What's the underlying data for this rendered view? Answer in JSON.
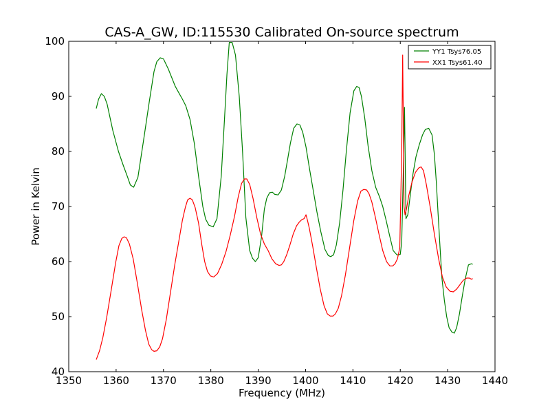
{
  "chart_data": {
    "type": "line",
    "title": "CAS-A_GW, ID:115530 Calibrated On-source spectrum",
    "xlabel": "Frequency (MHz)",
    "ylabel": "Power in Kelvin",
    "xlim": [
      1350,
      1440
    ],
    "ylim": [
      40,
      100
    ],
    "xticks": [
      1350,
      1360,
      1370,
      1380,
      1390,
      1400,
      1410,
      1420,
      1430,
      1440
    ],
    "yticks": [
      40,
      50,
      60,
      70,
      80,
      90,
      100
    ],
    "grid": false,
    "legend_position": "top-right",
    "series": [
      {
        "name": "YY1 Tsys76.05",
        "color": "#008000",
        "x": [
          1355.8,
          1356.3,
          1356.9,
          1357.5,
          1358.1,
          1359.3,
          1360.5,
          1361.5,
          1362.4,
          1363.0,
          1363.7,
          1364.6,
          1365.8,
          1367.0,
          1368.0,
          1368.6,
          1369.3,
          1370.0,
          1371.0,
          1372.5,
          1373.4,
          1374.0,
          1374.7,
          1375.6,
          1376.5,
          1377.4,
          1378.3,
          1378.9,
          1379.6,
          1380.5,
          1381.3,
          1382.2,
          1382.9,
          1383.4,
          1383.9,
          1384.5,
          1385.2,
          1386.0,
          1386.7,
          1387.4,
          1388.2,
          1388.8,
          1389.4,
          1390.0,
          1390.7,
          1391.3,
          1391.8,
          1392.4,
          1393.0,
          1393.5,
          1394.2,
          1394.9,
          1395.6,
          1396.2,
          1396.8,
          1397.5,
          1398.2,
          1398.8,
          1399.4,
          1400.1,
          1400.8,
          1401.6,
          1402.4,
          1403.2,
          1404.1,
          1404.8,
          1405.3,
          1405.9,
          1406.5,
          1407.2,
          1407.9,
          1408.6,
          1409.4,
          1410.2,
          1410.8,
          1411.3,
          1411.8,
          1412.5,
          1413.2,
          1414.0,
          1414.8,
          1415.6,
          1416.3,
          1417.0,
          1417.8,
          1418.5,
          1419.3,
          1420.0,
          1420.3,
          1420.6,
          1420.9,
          1421.2,
          1421.6,
          1422.1,
          1422.7,
          1423.3,
          1424.0,
          1424.7,
          1425.3,
          1426.0,
          1426.7,
          1427.2,
          1427.6,
          1428.0,
          1428.4,
          1428.8,
          1429.3,
          1429.8,
          1430.3,
          1430.9,
          1431.4,
          1431.9,
          1432.5,
          1433.1,
          1433.7,
          1434.4,
          1435.0,
          1435.3
        ],
        "values": [
          87.8,
          89.5,
          90.5,
          90.0,
          88.6,
          83.8,
          80.0,
          77.5,
          75.4,
          73.9,
          73.5,
          75.3,
          82.0,
          89.0,
          94.5,
          96.3,
          97.0,
          96.8,
          95.0,
          91.8,
          90.4,
          89.5,
          88.3,
          85.8,
          81.5,
          75.5,
          70.0,
          67.7,
          66.6,
          66.3,
          67.8,
          75.5,
          86.0,
          94.0,
          99.8,
          99.8,
          97.5,
          90.0,
          80.0,
          68.0,
          62.0,
          60.6,
          60.0,
          60.7,
          64.5,
          69.5,
          71.5,
          72.5,
          72.6,
          72.2,
          72.1,
          73.0,
          75.5,
          78.5,
          81.5,
          84.2,
          85.0,
          84.8,
          83.5,
          80.8,
          77.0,
          73.0,
          69.0,
          65.5,
          62.2,
          61.1,
          60.9,
          61.2,
          63.0,
          67.0,
          73.0,
          80.0,
          87.0,
          91.0,
          91.8,
          91.6,
          90.0,
          86.0,
          81.0,
          76.5,
          73.5,
          71.8,
          70.0,
          67.5,
          64.5,
          62.0,
          61.2,
          61.3,
          63.5,
          75.0,
          88.0,
          67.8,
          68.5,
          72.0,
          76.0,
          79.0,
          81.2,
          83.0,
          84.0,
          84.2,
          83.0,
          79.5,
          74.5,
          68.5,
          62.5,
          57.0,
          53.0,
          50.0,
          48.0,
          47.2,
          47.0,
          48.0,
          50.5,
          53.8,
          56.8,
          59.4,
          59.6,
          59.5
        ]
      },
      {
        "name": "XX1 Tsys61.40",
        "color": "#ff0000",
        "x": [
          1355.8,
          1356.5,
          1357.2,
          1358.0,
          1359.0,
          1359.9,
          1360.6,
          1361.2,
          1361.7,
          1362.2,
          1362.8,
          1363.6,
          1364.5,
          1365.4,
          1366.2,
          1366.9,
          1367.5,
          1368.0,
          1368.6,
          1369.2,
          1369.8,
          1370.6,
          1371.5,
          1372.4,
          1373.3,
          1374.0,
          1374.6,
          1375.1,
          1375.6,
          1376.1,
          1376.7,
          1377.4,
          1378.1,
          1378.7,
          1379.3,
          1379.9,
          1380.6,
          1381.4,
          1382.3,
          1383.2,
          1384.1,
          1385.0,
          1385.8,
          1386.5,
          1387.1,
          1387.6,
          1388.2,
          1388.9,
          1389.7,
          1390.5,
          1391.3,
          1392.1,
          1392.9,
          1393.7,
          1394.4,
          1394.9,
          1395.4,
          1396.0,
          1396.7,
          1397.4,
          1398.1,
          1398.7,
          1399.2,
          1399.7,
          1400.1,
          1400.4,
          1400.8,
          1401.5,
          1402.3,
          1403.1,
          1403.9,
          1404.6,
          1405.2,
          1405.8,
          1406.3,
          1406.9,
          1407.6,
          1408.4,
          1409.3,
          1410.2,
          1411.0,
          1411.7,
          1412.3,
          1412.9,
          1413.4,
          1414.0,
          1414.7,
          1415.5,
          1416.3,
          1417.1,
          1417.8,
          1418.4,
          1418.9,
          1419.4,
          1419.9,
          1420.3,
          1420.5,
          1420.65,
          1420.8,
          1421.0,
          1421.3,
          1421.8,
          1422.5,
          1423.2,
          1423.9,
          1424.4,
          1424.9,
          1425.5,
          1426.3,
          1427.2,
          1428.1,
          1428.9,
          1429.7,
          1430.5,
          1431.2,
          1431.9,
          1432.6,
          1433.3,
          1434.0,
          1434.6,
          1435.0,
          1435.3
        ],
        "values": [
          42.2,
          43.8,
          46.2,
          49.8,
          55.0,
          59.8,
          62.9,
          64.2,
          64.5,
          64.3,
          63.2,
          60.5,
          56.0,
          51.2,
          47.5,
          45.0,
          44.0,
          43.7,
          43.8,
          44.5,
          46.0,
          49.5,
          54.5,
          59.5,
          64.0,
          67.5,
          69.8,
          71.2,
          71.5,
          71.2,
          69.8,
          67.0,
          63.0,
          60.0,
          58.2,
          57.4,
          57.2,
          57.8,
          59.5,
          61.8,
          64.8,
          68.2,
          71.8,
          74.2,
          75.0,
          75.0,
          74.0,
          71.5,
          68.0,
          65.0,
          63.2,
          62.0,
          60.5,
          59.6,
          59.3,
          59.4,
          60.0,
          61.2,
          63.0,
          65.0,
          66.5,
          67.2,
          67.6,
          67.8,
          68.5,
          67.5,
          66.0,
          62.8,
          58.8,
          55.0,
          52.0,
          50.5,
          50.1,
          50.1,
          50.5,
          51.5,
          53.8,
          57.5,
          62.5,
          67.5,
          71.0,
          72.8,
          73.1,
          73.0,
          72.3,
          70.8,
          68.2,
          65.0,
          62.0,
          60.0,
          59.2,
          59.2,
          59.6,
          60.5,
          62.5,
          80.0,
          97.5,
          85.0,
          70.0,
          68.5,
          69.5,
          72.0,
          74.5,
          76.2,
          77.0,
          77.2,
          76.5,
          74.0,
          70.0,
          65.0,
          60.5,
          57.2,
          55.4,
          54.6,
          54.5,
          55.0,
          55.8,
          56.6,
          57.0,
          57.0,
          56.8,
          56.9
        ]
      }
    ]
  }
}
